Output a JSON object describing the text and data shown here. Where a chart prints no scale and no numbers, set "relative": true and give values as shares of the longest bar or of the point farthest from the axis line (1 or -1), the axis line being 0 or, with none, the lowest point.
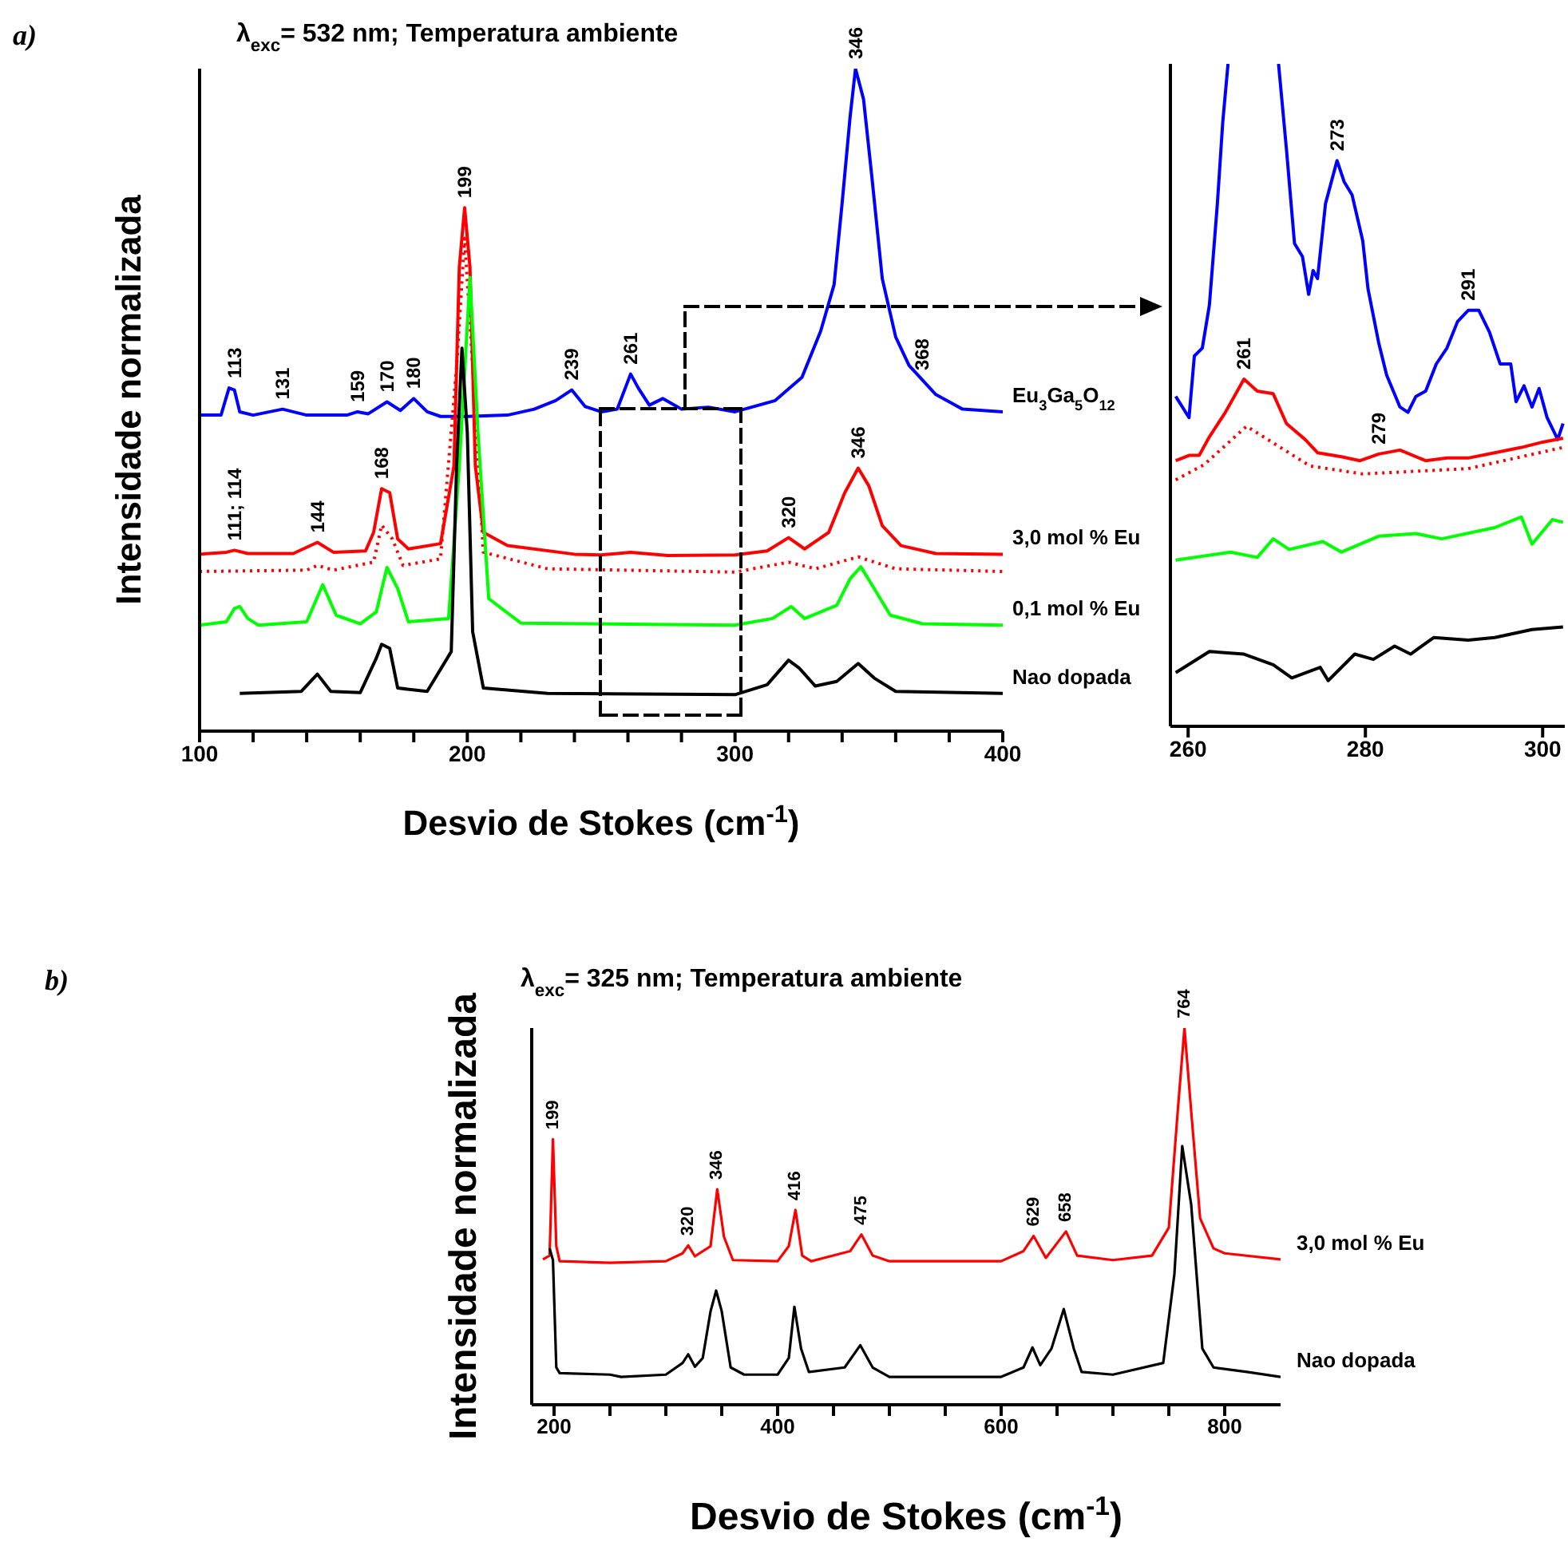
{
  "chart_data": [
    {
      "type": "line",
      "title": "λ$_{exc}$= 532 nm; Temperatura ambiente",
      "xlabel": "Desvio de Stokes (cm$^{-1}$)",
      "ylabel": "Intensidade normalizada",
      "relative": true,
      "legend": false,
      "grid": false,
      "xlim": [
        100,
        400
      ],
      "xticks": [
        100,
        {
          "value": 120,
          "label": null
        },
        {
          "value": 140,
          "label": null
        },
        {
          "value": 160,
          "label": null
        },
        {
          "value": 180,
          "label": null
        },
        200,
        {
          "value": 220,
          "label": null
        },
        {
          "value": 240,
          "label": null
        },
        {
          "value": 260,
          "label": null
        },
        {
          "value": 280,
          "label": null
        },
        300,
        {
          "value": 320,
          "label": null
        },
        {
          "value": 340,
          "label": null
        },
        {
          "value": 360,
          "label": null
        },
        {
          "value": 380,
          "label": null
        },
        400
      ],
      "series": [
        {
          "name": "Eu$_{3}$Ga$_{5}$O$_{12}$",
          "color": "#0000ff",
          "x": [
            100,
            108,
            111,
            113,
            115,
            120,
            131,
            140,
            155,
            159,
            163,
            170,
            175,
            180,
            185,
            190,
            200,
            215,
            225,
            233,
            239,
            244,
            250,
            256,
            261,
            264,
            268,
            273,
            280,
            290,
            300,
            315,
            325,
            332,
            337,
            340,
            343,
            345,
            348,
            351,
            355,
            360,
            365,
            370,
            375,
            385,
            400
          ],
          "values": [
            0.477,
            0.477,
            0.518,
            0.515,
            0.482,
            0.477,
            0.486,
            0.477,
            0.477,
            0.482,
            0.479,
            0.497,
            0.484,
            0.502,
            0.482,
            0.475,
            0.475,
            0.477,
            0.486,
            0.499,
            0.515,
            0.49,
            0.482,
            0.486,
            0.539,
            0.517,
            0.492,
            0.502,
            0.486,
            0.489,
            0.482,
            0.499,
            0.534,
            0.604,
            0.674,
            0.797,
            0.928,
            1.0,
            0.954,
            0.841,
            0.683,
            0.595,
            0.552,
            0.53,
            0.508,
            0.486,
            0.482
          ]
        },
        {
          "name": "3,0 mol % Eu",
          "color": "#ff0000",
          "x": [
            100,
            110,
            113,
            118,
            135,
            144,
            150,
            162,
            165,
            168,
            171,
            174,
            178,
            190,
            195,
            197,
            199,
            201,
            203,
            206,
            215,
            240,
            250,
            261,
            275,
            300,
            312,
            320,
            326,
            335,
            341,
            346,
            350,
            355,
            362,
            375,
            400
          ],
          "values": [
            0.267,
            0.27,
            0.273,
            0.268,
            0.268,
            0.285,
            0.27,
            0.272,
            0.3,
            0.366,
            0.36,
            0.29,
            0.275,
            0.283,
            0.4,
            0.7,
            0.79,
            0.7,
            0.4,
            0.3,
            0.28,
            0.267,
            0.266,
            0.27,
            0.265,
            0.266,
            0.272,
            0.292,
            0.275,
            0.3,
            0.36,
            0.397,
            0.37,
            0.31,
            0.28,
            0.268,
            0.267
          ]
        },
        {
          "color": "#ff0000",
          "line_style": "dotted",
          "x": [
            100,
            140,
            144,
            150,
            165,
            168,
            172,
            176,
            190,
            196,
            199,
            202,
            206,
            230,
            300,
            320,
            330,
            346,
            360,
            400
          ],
          "values": [
            0.241,
            0.243,
            0.25,
            0.243,
            0.255,
            0.311,
            0.29,
            0.25,
            0.26,
            0.55,
            0.744,
            0.55,
            0.27,
            0.245,
            0.24,
            0.255,
            0.245,
            0.263,
            0.245,
            0.241
          ]
        },
        {
          "name": "0,1 mol % Eu",
          "color": "#00ff00",
          "x": [
            100,
            110,
            113,
            115,
            118,
            122,
            140,
            146,
            151,
            160,
            166,
            170,
            174,
            178,
            193,
            197,
            201,
            204,
            208,
            220,
            300,
            314,
            321,
            326,
            338,
            343,
            347,
            352,
            358,
            370,
            400
          ],
          "values": [
            0.16,
            0.165,
            0.185,
            0.188,
            0.17,
            0.16,
            0.165,
            0.221,
            0.175,
            0.162,
            0.18,
            0.247,
            0.215,
            0.165,
            0.17,
            0.4,
            0.685,
            0.45,
            0.2,
            0.163,
            0.16,
            0.17,
            0.188,
            0.17,
            0.19,
            0.23,
            0.248,
            0.215,
            0.175,
            0.162,
            0.16
          ]
        },
        {
          "name": "Nao dopada",
          "color": "#000000",
          "x": [
            115,
            138,
            144,
            149,
            160,
            166,
            168,
            171,
            174,
            185,
            194,
            196,
            198,
            200,
            202,
            206,
            230,
            300,
            312,
            320,
            324,
            330,
            338,
            346,
            352,
            360,
            400
          ],
          "values": [
            0.057,
            0.06,
            0.086,
            0.06,
            0.058,
            0.11,
            0.131,
            0.125,
            0.065,
            0.06,
            0.12,
            0.4,
            0.578,
            0.45,
            0.15,
            0.065,
            0.057,
            0.055,
            0.07,
            0.107,
            0.095,
            0.068,
            0.075,
            0.102,
            0.08,
            0.06,
            0.057
          ]
        }
      ],
      "annotations": [
        "a)",
        {
          "text": "113",
          "x": 113,
          "y": 0.518
        },
        {
          "text": "131",
          "x": 131,
          "y": 0.486
        },
        {
          "text": "159",
          "x": 159,
          "y": 0.482
        },
        {
          "text": "170",
          "x": 170,
          "y": 0.497
        },
        {
          "text": "180",
          "x": 180,
          "y": 0.502
        },
        {
          "text": "239",
          "x": 239,
          "y": 0.515
        },
        {
          "text": "261",
          "x": 261,
          "y": 0.539
        },
        {
          "text": "346",
          "x": 345,
          "y": 1.0
        },
        {
          "text": "368",
          "x": 370,
          "y": 0.53
        },
        {
          "text": "111; 114",
          "x": 113,
          "y": 0.273
        },
        {
          "text": "144",
          "x": 144,
          "y": 0.285
        },
        {
          "text": "168",
          "x": 168,
          "y": 0.366
        },
        {
          "text": "199",
          "x": 199,
          "y": 0.79
        },
        {
          "text": "320",
          "x": 320,
          "y": 0.292
        },
        {
          "text": "346",
          "x": 346,
          "y": 0.397
        }
      ]
    },
    {
      "type": "line",
      "relative": true,
      "legend": false,
      "grid": false,
      "xlim": [
        258,
        302.5
      ],
      "xticks": [
        260,
        280,
        300
      ],
      "series": [
        {
          "color": "#0000ff",
          "x": [
            258.6,
            260.1,
            260.7,
            261.6,
            262.4,
            263.3,
            263.9,
            264.5,
            267,
            270.2,
            271.1,
            272.0,
            272.9,
            273.6,
            274.1,
            274.6,
            275.5,
            276.8,
            277.6,
            278.5,
            279.7,
            280.3,
            281.5,
            282.4,
            283.9,
            284.8,
            285.7,
            286.8,
            288.0,
            289.2,
            290.4,
            291.6,
            292.8,
            294.0,
            295.2,
            296.4,
            297.0,
            297.9,
            298.8,
            299.6,
            300.5,
            301.7,
            302.3
          ],
          "values": [
            0.498,
            0.466,
            0.559,
            0.571,
            0.636,
            0.789,
            0.911,
            1.0,
            null,
            1.0,
            0.87,
            0.729,
            0.709,
            0.652,
            0.688,
            0.676,
            0.789,
            0.854,
            0.822,
            0.802,
            0.733,
            0.66,
            0.579,
            0.53,
            0.482,
            0.474,
            0.498,
            0.506,
            0.547,
            0.571,
            0.611,
            0.628,
            0.628,
            0.595,
            0.547,
            0.547,
            0.49,
            0.514,
            0.482,
            0.51,
            0.466,
            0.433,
            0.457
          ]
        },
        {
          "color": "#ff0000",
          "x": [
            258.6,
            260.1,
            261.25,
            262.4,
            264.2,
            266.3,
            267.8,
            269.6,
            271.1,
            273.2,
            274.6,
            277.3,
            279.4,
            281.5,
            283.9,
            286.8,
            289.2,
            291.6,
            294.6,
            297.6,
            300.0,
            302.3
          ],
          "values": [
            0.401,
            0.409,
            0.409,
            0.437,
            0.474,
            0.524,
            0.506,
            0.502,
            0.457,
            0.433,
            0.413,
            0.407,
            0.401,
            0.411,
            0.417,
            0.401,
            0.405,
            0.405,
            0.413,
            0.421,
            0.429,
            0.435
          ]
        },
        {
          "color": "#ff0000",
          "line_style": "dotted",
          "x": [
            258.6,
            261.8,
            266.6,
            273.75,
            279.7,
            291.6,
            302.3
          ],
          "values": [
            0.372,
            0.395,
            0.453,
            0.393,
            0.381,
            0.389,
            0.421
          ]
        },
        {
          "color": "#00ff00",
          "x": [
            258.6,
            264.8,
            267.8,
            269.6,
            271.4,
            275.2,
            277.3,
            281.5,
            285.7,
            288.6,
            294.6,
            297.6,
            298.8,
            301.1,
            302.3
          ],
          "values": [
            0.251,
            0.263,
            0.255,
            0.283,
            0.267,
            0.279,
            0.263,
            0.287,
            0.291,
            0.283,
            0.3,
            0.316,
            0.275,
            0.312,
            0.308
          ]
        },
        {
          "color": "#000000",
          "x": [
            258.6,
            262.4,
            266.3,
            269.6,
            271.7,
            274.9,
            275.8,
            278.8,
            280.9,
            283.3,
            285.1,
            287.7,
            291.6,
            294.6,
            298.8,
            302.3
          ],
          "values": [
            0.081,
            0.113,
            0.109,
            0.093,
            0.073,
            0.089,
            0.069,
            0.109,
            0.101,
            0.121,
            0.109,
            0.134,
            0.13,
            0.134,
            0.146,
            0.15
          ]
        }
      ],
      "annotations": [
        {
          "text": "261",
          "x": 266.3,
          "y": 0.524
        },
        {
          "text": "273",
          "x": 276.8,
          "y": 0.854
        },
        {
          "text": "279",
          "x": 281.5,
          "y": 0.411
        },
        {
          "text": "291",
          "x": 291.6,
          "y": 0.628
        }
      ]
    },
    {
      "type": "line",
      "title": "λ$_{exc}$= 325 nm; Temperatura ambiente",
      "xlabel": "Desvio de Stokes (cm$^{-1}$)",
      "ylabel": "Intensidade normalizada",
      "relative": true,
      "legend": false,
      "grid": false,
      "xlim": [
        180,
        850
      ],
      "xticks": [
        200,
        {
          "value": 250,
          "label": null
        },
        {
          "value": 300,
          "label": null
        },
        {
          "value": 350,
          "label": null
        },
        400,
        {
          "value": 450,
          "label": null
        },
        {
          "value": 500,
          "label": null
        },
        {
          "value": 550,
          "label": null
        },
        600,
        {
          "value": 650,
          "label": null
        },
        {
          "value": 700,
          "label": null
        },
        {
          "value": 750,
          "label": null
        },
        800
      ],
      "series": [
        {
          "name": "3,0 mol % Eu",
          "color": "#ff0000",
          "x": [
            190,
            196,
            199,
            202,
            205,
            250,
            300,
            315,
            320,
            326,
            340,
            346,
            352,
            360,
            400,
            410,
            416,
            422,
            430,
            465,
            475,
            485,
            500,
            600,
            620,
            629,
            640,
            658,
            668,
            700,
            735,
            750,
            758,
            764,
            770,
            778,
            790,
            800,
            850
          ],
          "values": [
            0.386,
            0.396,
            0.705,
            0.421,
            0.381,
            0.377,
            0.381,
            0.402,
            0.423,
            0.394,
            0.421,
            0.572,
            0.446,
            0.384,
            0.381,
            0.421,
            0.517,
            0.396,
            0.381,
            0.408,
            0.452,
            0.396,
            0.381,
            0.381,
            0.408,
            0.448,
            0.39,
            0.46,
            0.396,
            0.384,
            0.396,
            0.47,
            0.78,
            1.0,
            0.78,
            0.495,
            0.415,
            0.402,
            0.386
          ]
        },
        {
          "name": "Nao dopada",
          "color": "#000000",
          "x": [
            196,
            199,
            202,
            205,
            250,
            260,
            300,
            315,
            320,
            326,
            333,
            340,
            345,
            350,
            358,
            370,
            400,
            410,
            415,
            421,
            428,
            460,
            474,
            485,
            500,
            600,
            620,
            628,
            635,
            645,
            656,
            665,
            672,
            700,
            745,
            755,
            762,
            770,
            780,
            790,
            820,
            850
          ],
          "values": [
            0.415,
            0.384,
            0.099,
            0.084,
            0.08,
            0.074,
            0.08,
            0.111,
            0.134,
            0.101,
            0.124,
            0.248,
            0.303,
            0.248,
            0.099,
            0.08,
            0.08,
            0.124,
            0.26,
            0.149,
            0.087,
            0.099,
            0.158,
            0.099,
            0.074,
            0.074,
            0.099,
            0.152,
            0.105,
            0.149,
            0.254,
            0.149,
            0.087,
            0.08,
            0.111,
            0.347,
            0.687,
            0.532,
            0.149,
            0.099,
            0.087,
            0.074
          ]
        }
      ],
      "annotations": [
        "b)",
        {
          "text": "199",
          "x": 199,
          "y": 0.705
        },
        {
          "text": "320",
          "x": 320,
          "y": 0.423
        },
        {
          "text": "346",
          "x": 346,
          "y": 0.572
        },
        {
          "text": "416",
          "x": 416,
          "y": 0.517
        },
        {
          "text": "475",
          "x": 475,
          "y": 0.452
        },
        {
          "text": "629",
          "x": 629,
          "y": 0.448
        },
        {
          "text": "658",
          "x": 658,
          "y": 0.46
        },
        {
          "text": "764",
          "x": 764,
          "y": 1.0
        }
      ]
    }
  ]
}
